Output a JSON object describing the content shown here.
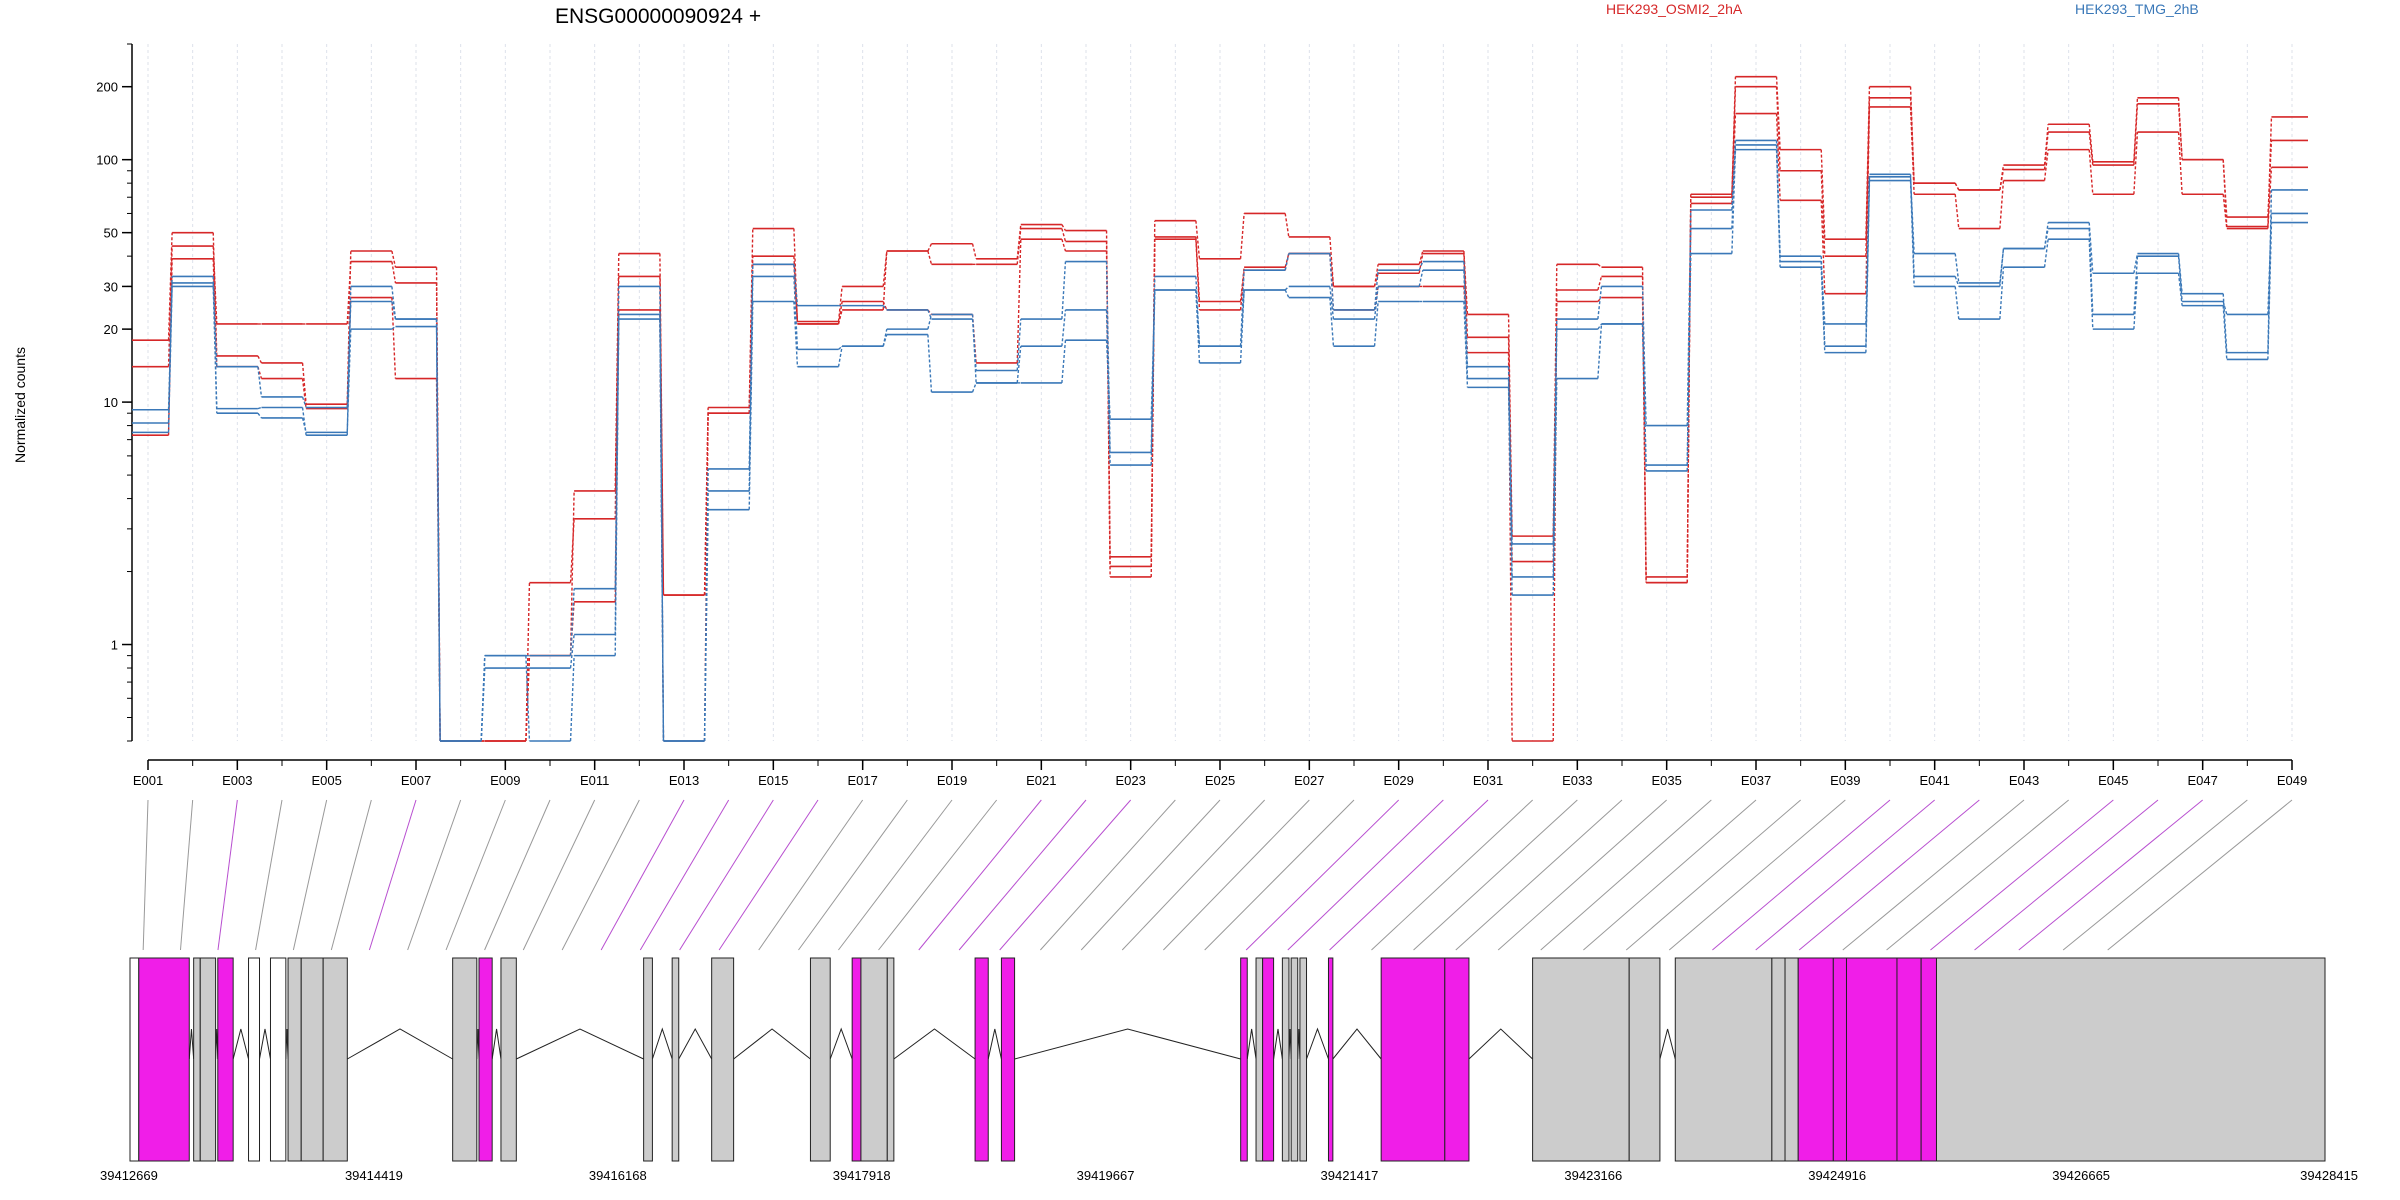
{
  "chart_data": {
    "type": "line",
    "title": "ENSG00000090924 +",
    "ylabel": "Normalized counts",
    "xlabel": "",
    "y_scale": "log",
    "ylim": [
      0.4,
      300
    ],
    "y_ticks": [
      1,
      10,
      20,
      30,
      50,
      100,
      200
    ],
    "y_tick_labels": [
      "1",
      "10",
      "20",
      "30",
      "50",
      "100",
      "200"
    ],
    "exons": [
      "E001",
      "E002",
      "E003",
      "E004",
      "E005",
      "E006",
      "E007",
      "E008",
      "E009",
      "E010",
      "E011",
      "E012",
      "E013",
      "E014",
      "E015",
      "E016",
      "E017",
      "E018",
      "E019",
      "E020",
      "E021",
      "E022",
      "E023",
      "E024",
      "E025",
      "E026",
      "E027",
      "E028",
      "E029",
      "E030",
      "E031",
      "E032",
      "E033",
      "E034",
      "E035",
      "E036",
      "E037",
      "E038",
      "E039",
      "E040",
      "E041",
      "E042",
      "E043",
      "E044",
      "E045",
      "E046",
      "E047",
      "E048",
      "E049"
    ],
    "x_tick_labels": [
      "E001",
      "E003",
      "E005",
      "E007",
      "E009",
      "E011",
      "E013",
      "E015",
      "E017",
      "E019",
      "E021",
      "E023",
      "E025",
      "E027",
      "E029",
      "E031",
      "E033",
      "E035",
      "E037",
      "E039",
      "E041",
      "E043",
      "E045",
      "E047",
      "E049"
    ],
    "legend": [
      {
        "name": "HEK293_OSMI2_2hA",
        "color": "#d62728"
      },
      {
        "name": "HEK293_TMG_2hB",
        "color": "#3a78b8"
      }
    ],
    "series": [
      {
        "group": "HEK293_OSMI2_2hA",
        "color": "#d62728",
        "values": [
          18,
          50,
          15.5,
          14.5,
          9.8,
          42,
          36,
          0.4,
          0.4,
          0.9,
          4.3,
          41,
          1.6,
          9.5,
          52,
          21,
          24,
          42,
          45,
          39,
          54,
          51,
          2.3,
          56,
          39,
          60,
          48,
          30,
          37,
          42,
          23,
          2.8,
          37,
          36,
          1.9,
          72,
          220,
          110,
          47,
          200,
          80,
          75,
          95,
          140,
          98,
          180,
          100,
          53,
          150
        ]
      },
      {
        "group": "HEK293_OSMI2_2hA",
        "color": "#d62728",
        "values": [
          14,
          44,
          21,
          21,
          21,
          38,
          31,
          0.4,
          0.4,
          1.8,
          3.3,
          33,
          1.6,
          9,
          40,
          21.5,
          30,
          42,
          37,
          37,
          52,
          46,
          1.9,
          48,
          26,
          36,
          41,
          30,
          34,
          41,
          18.5,
          2.2,
          29,
          33,
          1.8,
          70,
          200,
          90,
          40,
          180,
          80,
          75,
          91,
          130,
          95,
          170,
          100,
          58,
          120
        ]
      },
      {
        "group": "HEK293_OSMI2_2hA",
        "color": "#d62728",
        "values": [
          7.3,
          39,
          14,
          12.5,
          9.4,
          27,
          12.5,
          0.4,
          0.4,
          0.9,
          1.5,
          24,
          0.4,
          9,
          37,
          21,
          26,
          24,
          23,
          14.5,
          47,
          42,
          2.1,
          47,
          24,
          35,
          41,
          24,
          30,
          30,
          16,
          0.4,
          26,
          27,
          1.8,
          66,
          155,
          68,
          28,
          165,
          72,
          52,
          82,
          110,
          72,
          130,
          72,
          52,
          93
        ]
      },
      {
        "group": "HEK293_TMG_2hB",
        "color": "#3a78b8",
        "values": [
          9.3,
          31,
          14,
          10.5,
          9.5,
          26,
          22,
          0.4,
          0.9,
          0.9,
          1.7,
          30,
          0.4,
          5.3,
          37,
          25,
          25,
          24,
          22,
          13.5,
          22,
          38,
          6.2,
          33,
          17,
          35,
          41,
          24,
          35,
          38,
          14,
          2.6,
          22,
          30,
          8,
          62,
          115,
          40,
          17,
          85,
          41,
          31,
          43,
          55,
          34,
          41,
          28,
          16,
          75
        ]
      },
      {
        "group": "HEK293_TMG_2hB",
        "color": "#3a78b8",
        "values": [
          8.2,
          33,
          9.4,
          9.5,
          7.3,
          30,
          22,
          0.4,
          0.8,
          0.8,
          1.1,
          23,
          0.4,
          4.3,
          33,
          16.5,
          17,
          20,
          23,
          12,
          17,
          24,
          5.5,
          29,
          17,
          29,
          30,
          22,
          30,
          35,
          12.5,
          1.9,
          20,
          21,
          5.5,
          52,
          120,
          38,
          21,
          87,
          33,
          30,
          43,
          52,
          23,
          40,
          26,
          23,
          60
        ]
      },
      {
        "group": "HEK293_TMG_2hB",
        "color": "#3a78b8",
        "values": [
          7.5,
          30,
          9,
          8.6,
          7.5,
          20,
          20.5,
          0.4,
          0.9,
          0.4,
          0.9,
          22,
          0.4,
          3.6,
          26,
          14,
          17,
          19,
          11,
          12,
          12,
          18,
          8.5,
          29,
          14.5,
          29,
          27,
          17,
          26,
          26,
          11.5,
          1.6,
          12.5,
          21,
          5.2,
          41,
          110,
          36,
          16,
          82,
          30,
          22,
          36,
          47,
          20,
          34,
          25,
          15,
          55
        ]
      }
    ],
    "genome_axis_labels": [
      "39412669",
      "39414419",
      "39416168",
      "39417918",
      "39419667",
      "39421417",
      "39423166",
      "39424916",
      "39426665",
      "39428415"
    ]
  }
}
